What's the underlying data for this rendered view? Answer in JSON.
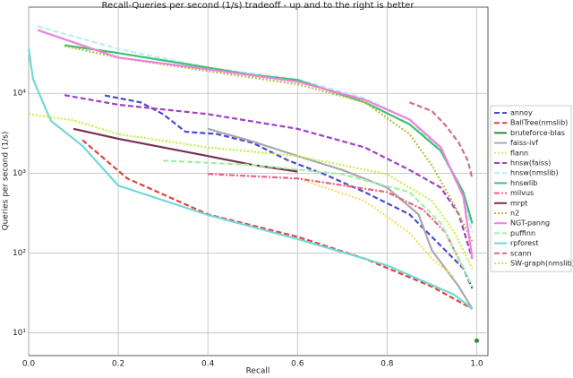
{
  "chart_data": {
    "type": "line",
    "title": "Recall-Queries per second (1/s) tradeoff - up and to the right is better",
    "x_label": "Recall",
    "y_label": "Queries per second (1/s)",
    "xlim": [
      0,
      1.025
    ],
    "ylim": [
      5.2,
      120000
    ],
    "y_scale": "log",
    "grid": true,
    "legend": "right",
    "xticks": [
      {
        "value": 0,
        "label": "0.0"
      },
      0.2,
      0.4,
      0.6,
      0.8,
      {
        "value": 1,
        "label": "1.0"
      }
    ],
    "yticks": [
      {
        "value": 10,
        "label": "10¹"
      },
      {
        "value": 100,
        "label": "10²"
      },
      {
        "value": 1000,
        "label": "10³"
      },
      {
        "value": 10000,
        "label": "10⁴"
      }
    ],
    "series": [
      {
        "name": "annoy",
        "color": "#4a4ad0",
        "style": "dashed",
        "x": [
          0.17,
          0.25,
          0.3,
          0.35,
          0.42,
          0.5,
          0.58,
          0.66,
          0.75,
          0.85,
          0.92,
          0.97,
          0.99
        ],
        "values": [
          9400,
          7700,
          5500,
          3300,
          3100,
          2400,
          1440,
          970,
          580,
          305,
          123,
          64,
          36
        ]
      },
      {
        "name": "BallTree(nmslib)",
        "color": "#e0443c",
        "style": "dashed",
        "x": [
          0.12,
          0.22,
          0.4,
          0.6,
          0.75,
          0.9,
          0.99
        ],
        "values": [
          2600,
          860,
          305,
          160,
          85,
          38,
          20
        ]
      },
      {
        "name": "bruteforce-blas",
        "color": "#2e8b3a",
        "style": "solid",
        "x": [
          1.0
        ],
        "values": [
          8
        ]
      },
      {
        "name": "faiss-ivf",
        "color": "#a8a8b0",
        "style": "solid",
        "x": [
          0.4,
          0.5,
          0.6,
          0.7,
          0.8,
          0.87,
          0.9,
          0.93,
          0.96,
          0.99
        ],
        "values": [
          3600,
          2500,
          1640,
          1100,
          660,
          305,
          108,
          64,
          38,
          20
        ]
      },
      {
        "name": "flann",
        "color": "#f0e060",
        "style": "dotted",
        "x": [
          0.6,
          0.75,
          0.85,
          0.9,
          0.95
        ],
        "values": [
          860,
          450,
          180,
          85,
          50
        ]
      },
      {
        "name": "hnsw(faiss)",
        "color": "#a040c8",
        "style": "dashed",
        "x": [
          0.08,
          0.2,
          0.4,
          0.6,
          0.75,
          0.85,
          0.92,
          0.96,
          0.99
        ],
        "values": [
          9500,
          7200,
          5500,
          3600,
          2100,
          1100,
          660,
          305,
          85
        ]
      },
      {
        "name": "hnsw(nmslib)",
        "color": "#b8f0f0",
        "style": "dashed",
        "x": [
          0.02,
          0.2,
          0.4,
          0.6,
          0.75,
          0.85,
          0.92,
          0.97,
          0.99
        ],
        "values": [
          69000,
          36000,
          21000,
          15000,
          8700,
          4700,
          1900,
          510,
          182
        ]
      },
      {
        "name": "hnswlib",
        "color": "#40c070",
        "style": "solid",
        "x": [
          0.08,
          0.2,
          0.4,
          0.5,
          0.6,
          0.75,
          0.85,
          0.92,
          0.97,
          0.99
        ],
        "values": [
          40000,
          32000,
          21000,
          17000,
          14700,
          7700,
          4100,
          1900,
          580,
          235
        ]
      },
      {
        "name": "milvus",
        "color": "#f06080",
        "style": "dashdot",
        "x": [
          0.4,
          0.6,
          0.8,
          0.88,
          0.93,
          0.97
        ],
        "values": [
          980,
          860,
          580,
          350,
          182,
          64
        ]
      },
      {
        "name": "mrpt",
        "color": "#7a3050",
        "style": "solid",
        "x": [
          0.1,
          0.2,
          0.3,
          0.4,
          0.5,
          0.6
        ],
        "values": [
          3600,
          2700,
          2100,
          1640,
          1270,
          1050
        ]
      },
      {
        "name": "n2",
        "color": "#b8c040",
        "style": "dotted",
        "x": [
          0.08,
          0.2,
          0.4,
          0.6,
          0.75,
          0.85,
          0.9,
          0.95,
          0.99
        ],
        "values": [
          39000,
          28000,
          19000,
          13000,
          7700,
          3100,
          1250,
          400,
          140
        ]
      },
      {
        "name": "NGT-panng",
        "color": "#f080e0",
        "style": "solid",
        "x": [
          0.02,
          0.2,
          0.4,
          0.6,
          0.75,
          0.85,
          0.92,
          0.97,
          0.99
        ],
        "values": [
          62000,
          28000,
          20000,
          14000,
          8300,
          4700,
          2100,
          510,
          85
        ]
      },
      {
        "name": "puffinn",
        "color": "#a0f0a0",
        "style": "dashed",
        "x": [
          0.3,
          0.5,
          0.7,
          0.85,
          0.92,
          0.96,
          0.99
        ],
        "values": [
          1440,
          1270,
          970,
          580,
          235,
          85,
          38
        ]
      },
      {
        "name": "rpforest",
        "color": "#70d8d8",
        "style": "solid",
        "x": [
          0,
          0.01,
          0.02,
          0.05,
          0.12,
          0.2,
          0.4,
          0.6,
          0.8,
          0.95,
          0.99
        ],
        "values": [
          36000,
          15000,
          11000,
          4500,
          2200,
          700,
          300,
          150,
          70,
          30,
          20
        ]
      },
      {
        "name": "scann",
        "color": "#d07080",
        "style": "dashed",
        "x": [
          0.85,
          0.9,
          0.93,
          0.96,
          0.98,
          0.99
        ],
        "values": [
          7700,
          6000,
          4000,
          2400,
          1440,
          860
        ]
      },
      {
        "name": "SW-graph(nmslib)",
        "color": "#c8f040",
        "style": "dotted",
        "x": [
          0,
          0.1,
          0.2,
          0.4,
          0.6,
          0.8,
          0.9,
          0.95,
          0.99
        ],
        "values": [
          5500,
          4600,
          3100,
          2100,
          1640,
          970,
          450,
          182,
          64
        ]
      }
    ]
  }
}
